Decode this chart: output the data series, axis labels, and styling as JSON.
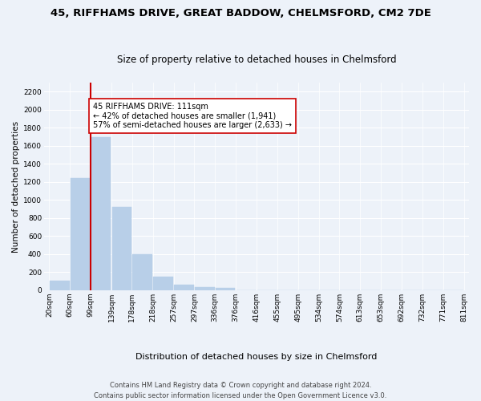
{
  "title_line1": "45, RIFFHAMS DRIVE, GREAT BADDOW, CHELMSFORD, CM2 7DE",
  "title_line2": "Size of property relative to detached houses in Chelmsford",
  "xlabel": "Distribution of detached houses by size in Chelmsford",
  "ylabel": "Number of detached properties",
  "bar_values": [
    110,
    1245,
    1700,
    920,
    400,
    150,
    65,
    35,
    25,
    0,
    0,
    0,
    0,
    0,
    0,
    0,
    0,
    0,
    0,
    0
  ],
  "bin_labels": [
    "20sqm",
    "60sqm",
    "99sqm",
    "139sqm",
    "178sqm",
    "218sqm",
    "257sqm",
    "297sqm",
    "336sqm",
    "376sqm",
    "416sqm",
    "455sqm",
    "495sqm",
    "534sqm",
    "574sqm",
    "613sqm",
    "653sqm",
    "692sqm",
    "732sqm",
    "771sqm",
    "811sqm"
  ],
  "bar_color": "#b8cfe8",
  "vline_x_bar_index": 2,
  "vline_color": "#cc0000",
  "annotation_text": "45 RIFFHAMS DRIVE: 111sqm\n← 42% of detached houses are smaller (1,941)\n57% of semi-detached houses are larger (2,633) →",
  "annotation_box_color": "#ffffff",
  "annotation_box_edge": "#cc0000",
  "ylim": [
    0,
    2300
  ],
  "yticks": [
    0,
    200,
    400,
    600,
    800,
    1000,
    1200,
    1400,
    1600,
    1800,
    2000,
    2200
  ],
  "footer_line1": "Contains HM Land Registry data © Crown copyright and database right 2024.",
  "footer_line2": "Contains public sector information licensed under the Open Government Licence v3.0.",
  "bg_color": "#edf2f9",
  "plot_bg_color": "#edf2f9",
  "title_fontsize": 9.5,
  "subtitle_fontsize": 8.5,
  "ylabel_fontsize": 7.5,
  "xlabel_fontsize": 8,
  "tick_fontsize": 6.5,
  "annotation_fontsize": 7,
  "footer_fontsize": 6
}
